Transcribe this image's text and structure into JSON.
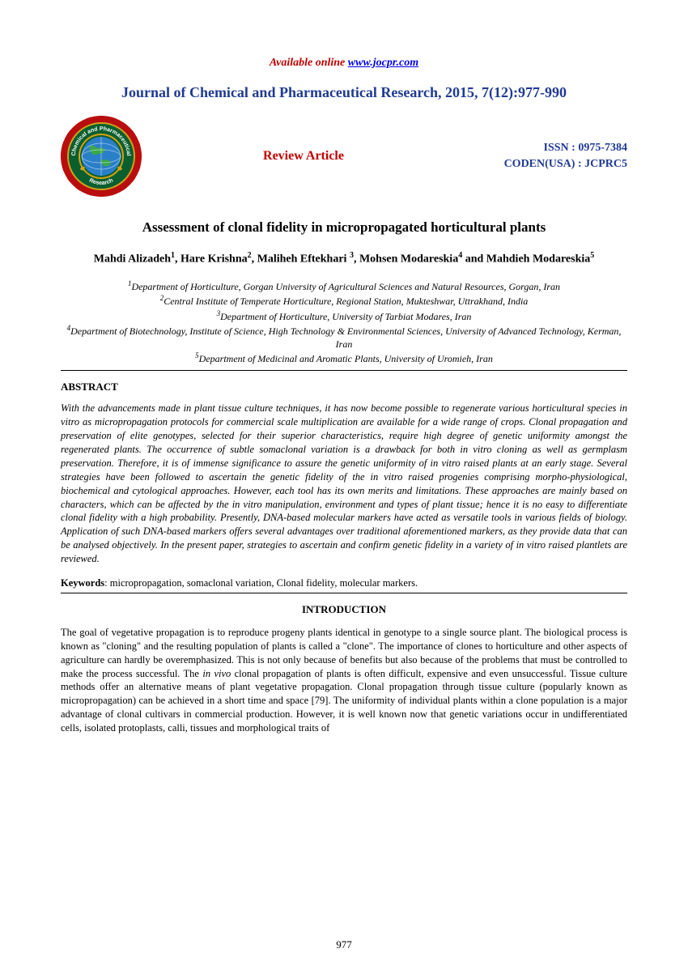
{
  "available_online": {
    "label": "Available online ",
    "link": "www.jocpr.com"
  },
  "journal_title": "Journal of Chemical and Pharmaceutical Research, 2015, 7(12):977-990",
  "review_article": "Review Article",
  "issn": {
    "line1": "ISSN : 0975-7384",
    "line2": "CODEN(USA) : JCPRC5"
  },
  "paper_title": "Assessment of clonal fidelity in micropropagated horticultural plants",
  "authors_html": "Mahdi Alizadeh<sup>1</sup>, Hare Krishna<sup>2</sup>, Maliheh Eftekhari <sup>3</sup>, Mohsen Modareskia<sup>4</sup> and Mahdieh Modareskia<sup>5</sup>",
  "affiliations_html": "<sup>1</sup>Department of Horticulture, Gorgan University of Agricultural Sciences and Natural Resources, Gorgan, Iran<br><sup>2</sup>Central Institute of Temperate Horticulture, Regional Station, Mukteshwar, Uttrakhand, India<br><sup>3</sup>Department of Horticulture, University of Tarbiat Modares, Iran<br><sup>4</sup>Department of Biotechnology, Institute of Science, High Technology &amp; Environmental Sciences, University of Advanced Technology, Kerman, Iran<br><sup>5</sup>Department of Medicinal and Aromatic Plants, University of Uromieh, Iran",
  "abstract_heading": "ABSTRACT",
  "abstract_body": "With the advancements made in plant tissue culture techniques, it has now become possible to regenerate various horticultural species in vitro as micropropagation protocols for commercial scale multiplication are available for a wide range of crops. Clonal propagation and preservation of elite genotypes, selected for their superior characteristics, require high degree of genetic uniformity amongst the regenerated plants. The occurrence of subtle somaclonal variation is a drawback for both in vitro cloning as well as germplasm preservation. Therefore, it is of immense significance to assure the genetic uniformity of in vitro raised plants at an early stage. Several strategies have been followed to ascertain the genetic fidelity of the in vitro raised progenies comprising morpho-physiological, biochemical and cytological approaches. However, each tool has its own merits and limitations. These approaches are mainly based on characters, which can be affected by the in vitro manipulation, environment and types of plant tissue; hence it is no easy to differentiate clonal fidelity with a high probability. Presently, DNA-based molecular markers have acted as versatile tools in various fields of biology. Application of such DNA-based markers offers several advantages over traditional aforementioned markers, as they provide data that can be analysed objectively. In the present paper, strategies to ascertain and confirm genetic fidelity in a variety of in vitro raised plantlets are reviewed.",
  "keywords": {
    "label": "Keywords",
    "text": ": micropropagation, somaclonal variation, Clonal fidelity, molecular markers."
  },
  "intro_heading": "INTRODUCTION",
  "intro_body_html": "The goal of vegetative propagation is to reproduce progeny plants identical in genotype to a single source plant. The biological process is known as \"cloning\" and the resulting population of plants is called a \"clone\". The importance of clones to horticulture and other aspects of agriculture can hardly be overemphasized. This is not only because of benefits but also because of the problems that must be controlled to make the process successful. The <span class=\"ital\">in vivo</span> clonal propagation of plants is often difficult, expensive and even unsuccessful. Tissue culture methods offer an alternative means of plant vegetative propagation. Clonal propagation through tissue culture (popularly known as micropropagation) can be achieved in a short time and space [79]. The uniformity of individual plants within a clone population is a major advantage of clonal cultivars in commercial production. However, it is well known now that genetic variations occur in undifferentiated cells, isolated protoplasts, calli, tissues and morphological traits of",
  "page_number": "977",
  "logo": {
    "outer_text_top": "Chemical and Pharmaceutical",
    "outer_text_bottom": "Research"
  }
}
